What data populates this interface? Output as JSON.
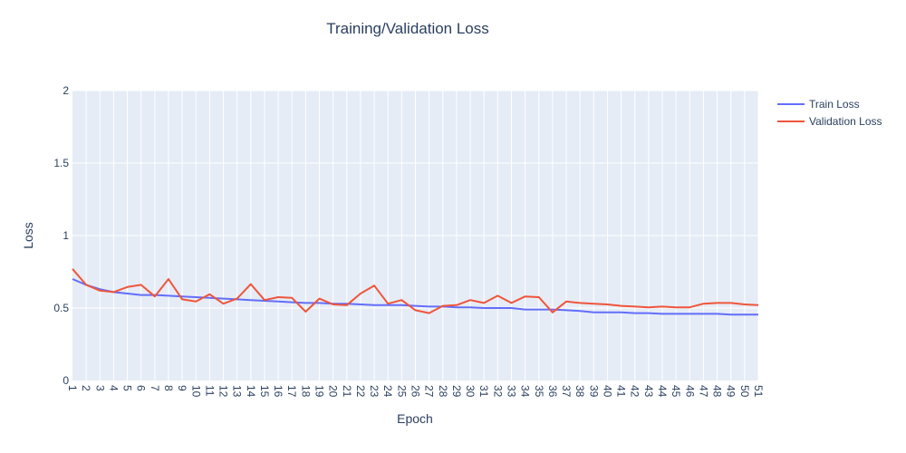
{
  "chart_data": {
    "type": "line",
    "title": "Training/Validation Loss",
    "xlabel": "Epoch",
    "ylabel": "Loss",
    "x": [
      1,
      2,
      3,
      4,
      5,
      6,
      7,
      8,
      9,
      10,
      11,
      12,
      13,
      14,
      15,
      16,
      17,
      18,
      19,
      20,
      21,
      22,
      23,
      24,
      25,
      26,
      27,
      28,
      29,
      30,
      31,
      32,
      33,
      34,
      35,
      36,
      37,
      38,
      39,
      40,
      41,
      42,
      43,
      44,
      45,
      46,
      47,
      48,
      49,
      50,
      51
    ],
    "xlim": [
      1,
      51
    ],
    "ylim": [
      0,
      2
    ],
    "yticks": [
      0,
      0.5,
      1,
      1.5,
      2
    ],
    "ytick_labels": [
      "0",
      "0.5",
      "1",
      "1.5",
      "2"
    ],
    "grid": true,
    "legend": "top-right",
    "series": [
      {
        "name": "Train Loss",
        "color": "#636efa",
        "values": [
          0.7,
          0.66,
          0.63,
          0.61,
          0.6,
          0.59,
          0.59,
          0.585,
          0.58,
          0.575,
          0.57,
          0.565,
          0.56,
          0.555,
          0.55,
          0.545,
          0.54,
          0.535,
          0.535,
          0.53,
          0.53,
          0.525,
          0.52,
          0.52,
          0.52,
          0.515,
          0.51,
          0.51,
          0.505,
          0.505,
          0.5,
          0.5,
          0.5,
          0.49,
          0.49,
          0.49,
          0.485,
          0.48,
          0.47,
          0.47,
          0.47,
          0.465,
          0.465,
          0.46,
          0.46,
          0.46,
          0.46,
          0.46,
          0.455,
          0.455,
          0.455
        ]
      },
      {
        "name": "Validation Loss",
        "color": "#ef553b",
        "values": [
          0.77,
          0.66,
          0.62,
          0.61,
          0.645,
          0.66,
          0.58,
          0.7,
          0.56,
          0.545,
          0.595,
          0.53,
          0.565,
          0.665,
          0.555,
          0.575,
          0.57,
          0.475,
          0.565,
          0.525,
          0.52,
          0.6,
          0.655,
          0.53,
          0.555,
          0.485,
          0.465,
          0.515,
          0.52,
          0.555,
          0.535,
          0.585,
          0.535,
          0.58,
          0.575,
          0.47,
          0.545,
          0.535,
          0.53,
          0.525,
          0.515,
          0.51,
          0.505,
          0.51,
          0.505,
          0.505,
          0.53,
          0.535,
          0.535,
          0.525,
          0.52
        ]
      }
    ]
  }
}
